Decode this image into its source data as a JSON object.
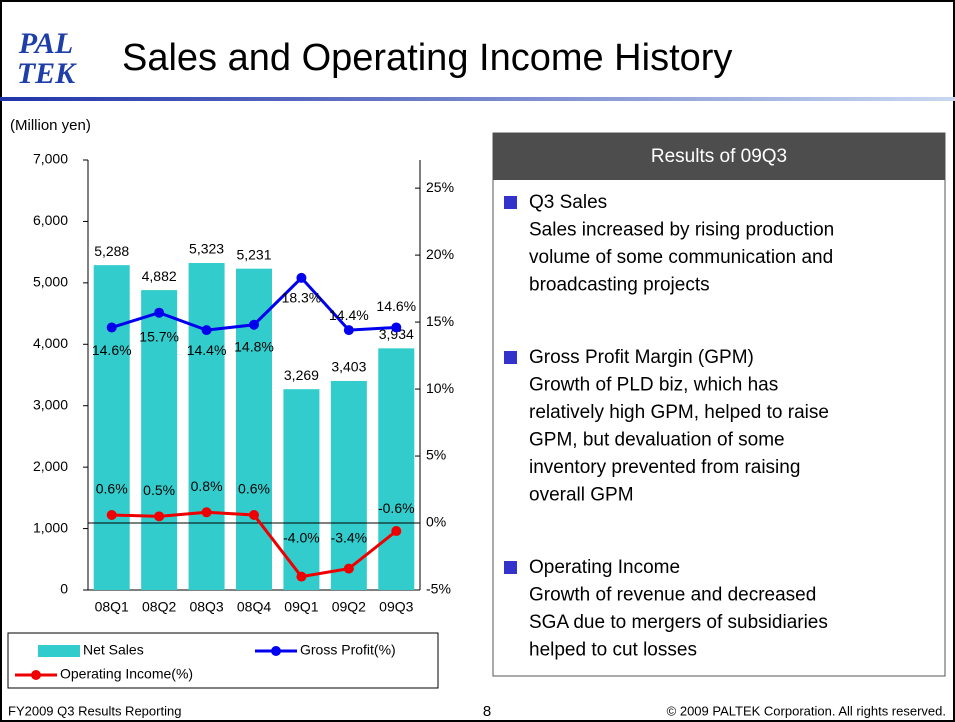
{
  "slide": {
    "logo": [
      "PAL",
      "TEK"
    ],
    "title": "Sales and Operating Income History",
    "footer_left": "FY2009 Q3 Results Reporting",
    "page": "8",
    "copyright": "© 2009 PALTEK Corporation. All rights reserved."
  },
  "panel": {
    "title": "Results of 09Q3",
    "items": [
      {
        "heading": "Q3 Sales",
        "lines": [
          "Sales increased by rising production",
          "volume of some communication and",
          "broadcasting projects"
        ]
      },
      {
        "heading": "Gross Profit Margin (GPM)",
        "lines": [
          "Growth of PLD biz, which has",
          "relatively high GPM, helped to raise",
          "GPM, but devaluation of some",
          "inventory prevented from raising",
          "overall GPM"
        ]
      },
      {
        "heading": "Operating Income",
        "lines": [
          "Growth of revenue and decreased",
          "SGA due to mergers of subsidiaries",
          "helped to cut losses"
        ]
      }
    ]
  },
  "chart_data": {
    "type": "bar",
    "y_label": "(Million yen)",
    "categories": [
      "08Q1",
      "08Q2",
      "08Q3",
      "08Q4",
      "09Q1",
      "09Q2",
      "09Q3"
    ],
    "series": [
      {
        "name": "Net Sales",
        "color": "#33cccc",
        "values": [
          5288,
          4882,
          5323,
          5231,
          3269,
          3403,
          3934
        ],
        "value_labels": [
          "5,288",
          "4,882",
          "5,323",
          "5,231",
          "3,269",
          "3,403",
          "3,934"
        ]
      },
      {
        "name": "Gross Profit(%)",
        "type": "line",
        "axis": "y2",
        "color": "#0000ee",
        "values": [
          14.6,
          15.7,
          14.4,
          14.8,
          18.3,
          14.4,
          14.6
        ],
        "value_labels": [
          "14.6%",
          "15.7%",
          "14.4%",
          "14.8%",
          "18.3%",
          "14.4%",
          "14.6%"
        ]
      },
      {
        "name": "Operating Income(%)",
        "type": "line",
        "axis": "y2",
        "color": "#ee0000",
        "values": [
          0.6,
          0.5,
          0.8,
          0.6,
          -4.0,
          -3.4,
          -0.6
        ],
        "value_labels": [
          "0.6%",
          "0.5%",
          "0.8%",
          "0.6%",
          "-4.0%",
          "-3.4%",
          "-0.6%"
        ]
      }
    ],
    "ylim": [
      0,
      7000
    ],
    "yticks": [
      0,
      {
        "value": 1000,
        "label": "1,000"
      },
      {
        "value": 2000,
        "label": "2,000"
      },
      {
        "value": 3000,
        "label": "3,000"
      },
      {
        "value": 4000,
        "label": "4,000"
      },
      {
        "value": 5000,
        "label": "5,000"
      },
      {
        "value": 6000,
        "label": "6,000"
      },
      {
        "value": 7000,
        "label": "7,000"
      }
    ],
    "y2lim": [
      -5,
      27.1
    ],
    "y2ticks": [
      {
        "value": -5,
        "label": "-5%"
      },
      {
        "value": 0,
        "label": "0%"
      },
      {
        "value": 5,
        "label": "5%"
      },
      {
        "value": 10,
        "label": "10%"
      },
      {
        "value": 15,
        "label": "15%"
      },
      {
        "value": 20,
        "label": "20%"
      },
      {
        "value": 25,
        "label": "25%"
      }
    ]
  }
}
